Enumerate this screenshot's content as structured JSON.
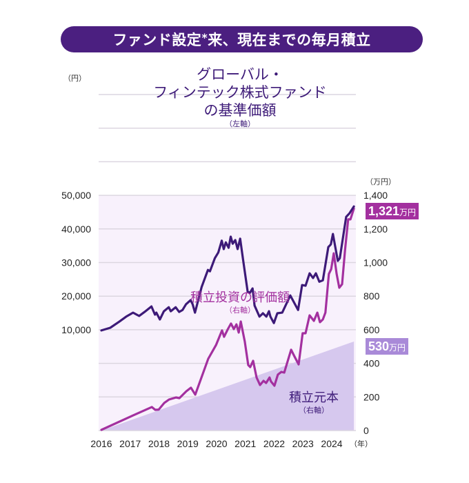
{
  "header": {
    "title_pre": "ファンド設定",
    "title_mark": "*",
    "title_post": "来、現在までの毎月積立"
  },
  "colors": {
    "title_bg": "#4b1f80",
    "fund": "#3d1a78",
    "valuation": "#a3309f",
    "principal_fill": "#d6c8ee",
    "plot_bg": "#f8f1fc",
    "badge_principal": "#a98ad8",
    "grid": "#dcd6e0"
  },
  "chart_data": {
    "type": "line",
    "title": "ファンド設定*来、現在までの毎月積立",
    "xlabel": "（年）",
    "x_ticks": [
      "2016",
      "2017",
      "2018",
      "2019",
      "2020",
      "2021",
      "2022",
      "2023",
      "2024"
    ],
    "xlim": [
      2016,
      2024.77
    ],
    "left_axis": {
      "unit": "（円）",
      "ylim": [
        0,
        50000
      ],
      "ticks": [
        "50,000",
        "40,000",
        "30,000",
        "20,000",
        "10,000"
      ],
      "tick_values": [
        50000,
        40000,
        30000,
        20000,
        10000
      ]
    },
    "right_axis": {
      "unit": "（万円）",
      "ylim": [
        0,
        1400
      ],
      "ticks": [
        "1,400",
        "1,200",
        "1,000",
        "800",
        "600",
        "400",
        "200",
        "0"
      ],
      "tick_values": [
        1400,
        1200,
        1000,
        800,
        600,
        400,
        200,
        0
      ]
    },
    "grid": true,
    "series": [
      {
        "name": "fund_nav",
        "label_lines": [
          "グローバル・",
          "フィンテック株式ファンド",
          "の基準価額"
        ],
        "axis_note": "（左軸）",
        "axis": "left",
        "x": [
          2016.0,
          2016.31,
          2016.62,
          2016.86,
          2017.1,
          2017.31,
          2017.5,
          2017.74,
          2017.86,
          2017.91,
          2018.03,
          2018.17,
          2018.34,
          2018.41,
          2018.58,
          2018.7,
          2018.82,
          2018.94,
          2019.1,
          2019.17,
          2019.25,
          2019.48,
          2019.7,
          2019.77,
          2019.94,
          2020.06,
          2020.18,
          2020.25,
          2020.32,
          2020.42,
          2020.49,
          2020.56,
          2020.65,
          2020.73,
          2020.82,
          2020.92,
          2021.08,
          2021.16,
          2021.25,
          2021.32,
          2021.49,
          2021.61,
          2021.73,
          2021.82,
          2021.87,
          2021.99,
          2022.11,
          2022.28,
          2022.56,
          2022.83,
          2022.97,
          2023.09,
          2023.23,
          2023.35,
          2023.45,
          2023.57,
          2023.69,
          2023.88,
          2023.97,
          2024.04,
          2024.21,
          2024.28,
          2024.5,
          2024.62,
          2024.77
        ],
        "values": [
          9800,
          10600,
          12400,
          13900,
          15100,
          14100,
          15300,
          16950,
          14500,
          15100,
          13050,
          15500,
          16700,
          15500,
          16700,
          15300,
          15900,
          17600,
          18800,
          17600,
          15100,
          22700,
          27800,
          27400,
          31300,
          33000,
          36500,
          34000,
          36000,
          34400,
          37700,
          35600,
          36700,
          34000,
          37100,
          30900,
          21300,
          21000,
          22300,
          17200,
          13900,
          14900,
          13900,
          15500,
          13900,
          12000,
          14900,
          15100,
          20200,
          15900,
          23300,
          23100,
          26800,
          25400,
          26800,
          24300,
          24700,
          34600,
          35400,
          38500,
          30500,
          31300,
          43600,
          44700,
          46700
        ]
      },
      {
        "name": "valuation",
        "label": "積立投資の評価額",
        "axis_note": "（右軸）",
        "axis": "right",
        "end_value": "1,321",
        "end_unit": "万円",
        "x": [
          2016.0,
          2017.1,
          2017.75,
          2017.87,
          2017.99,
          2018.18,
          2018.35,
          2018.59,
          2018.71,
          2018.95,
          2019.11,
          2019.26,
          2019.71,
          2019.98,
          2020.19,
          2020.26,
          2020.38,
          2020.5,
          2020.6,
          2020.69,
          2020.77,
          2020.84,
          2020.98,
          2021.1,
          2021.17,
          2021.27,
          2021.39,
          2021.51,
          2021.63,
          2021.72,
          2021.84,
          2021.89,
          2022.01,
          2022.13,
          2022.25,
          2022.35,
          2022.59,
          2022.71,
          2022.85,
          2022.99,
          2023.09,
          2023.23,
          2023.38,
          2023.5,
          2023.59,
          2023.69,
          2023.78,
          2023.9,
          2023.98,
          2024.07,
          2024.17,
          2024.26,
          2024.36,
          2024.46,
          2024.57,
          2024.65,
          2024.77
        ],
        "values": [
          4,
          90,
          140,
          123,
          125,
          164,
          185,
          197,
          193,
          234,
          255,
          214,
          427,
          509,
          596,
          558,
          600,
          637,
          604,
          632,
          583,
          649,
          530,
          390,
          378,
          415,
          316,
          271,
          296,
          283,
          316,
          292,
          267,
          333,
          349,
          345,
          481,
          440,
          394,
          579,
          579,
          686,
          653,
          702,
          645,
          661,
          702,
          932,
          961,
          1055,
          932,
          850,
          871,
          1072,
          1257,
          1257,
          1321
        ]
      },
      {
        "name": "principal",
        "label": "積立元本",
        "axis_note": "（右軸）",
        "axis": "right",
        "type": "area",
        "end_value": "530",
        "end_unit": "万円",
        "x": [
          2016.0,
          2024.77
        ],
        "values": [
          0,
          530
        ]
      }
    ]
  }
}
